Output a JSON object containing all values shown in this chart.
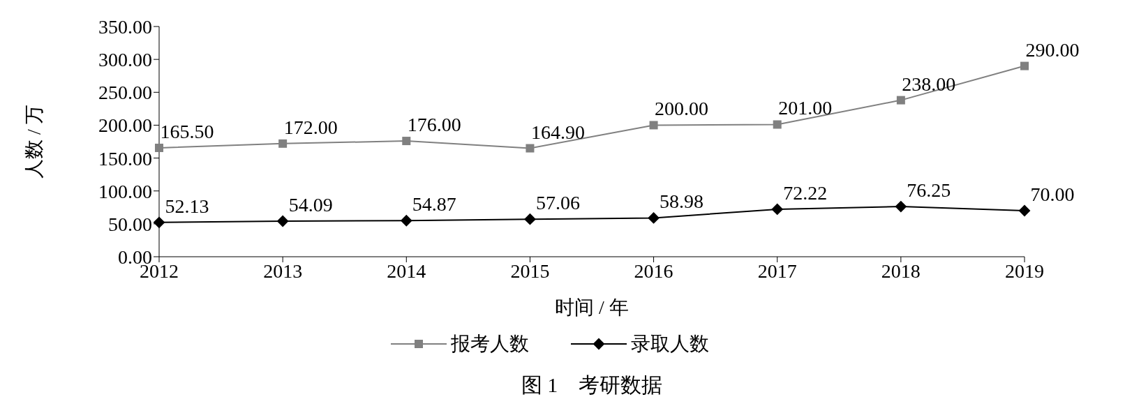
{
  "chart_data": {
    "type": "line",
    "title": "图 1　考研数据",
    "xlabel": "时间 / 年",
    "ylabel": "人数 / 万",
    "categories": [
      "2012",
      "2013",
      "2014",
      "2015",
      "2016",
      "2017",
      "2018",
      "2019"
    ],
    "series": [
      {
        "name": "报考人数",
        "color": "#808080",
        "marker": "square",
        "values": [
          165.5,
          172,
          176,
          164.9,
          200,
          201,
          238,
          290
        ],
        "value_labels": [
          "165.50",
          "172.00",
          "176.00",
          "164.90",
          "200.00",
          "201.00",
          "238.00",
          "290.00"
        ]
      },
      {
        "name": "录取人数",
        "color": "#000000",
        "marker": "diamond",
        "values": [
          52.13,
          54.09,
          54.87,
          57.06,
          58.98,
          72.22,
          76.25,
          70
        ],
        "value_labels": [
          "52.13",
          "54.09",
          "54.87",
          "57.06",
          "58.98",
          "72.22",
          "76.25",
          "70.00"
        ]
      }
    ],
    "ylim": [
      0,
      350
    ],
    "yticks": [
      {
        "value": 0,
        "label": "0.00"
      },
      {
        "value": 50,
        "label": "50.00"
      },
      {
        "value": 100,
        "label": "100.00"
      },
      {
        "value": 150,
        "label": "150.00"
      },
      {
        "value": 200,
        "label": "200.00"
      },
      {
        "value": 250,
        "label": "250.00"
      },
      {
        "value": 300,
        "label": "300.00"
      },
      {
        "value": 350,
        "label": "350.00"
      }
    ],
    "grid": false,
    "legend": "bottom",
    "line_style": "solid"
  }
}
